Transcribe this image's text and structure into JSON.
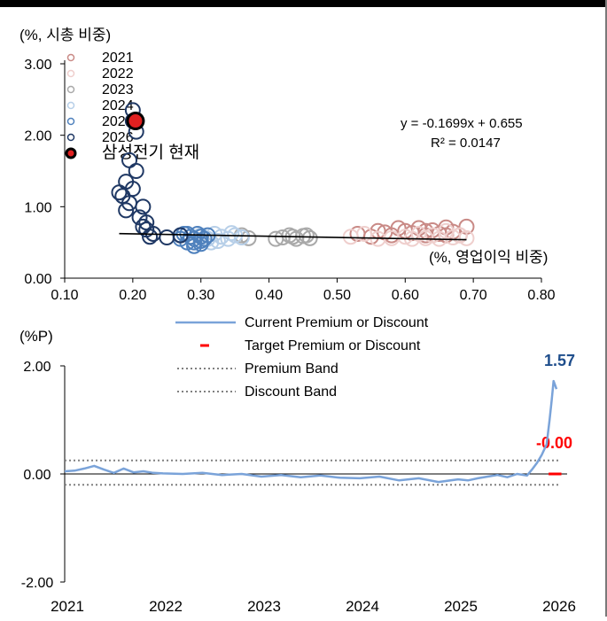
{
  "chart_data": [
    {
      "type": "scatter",
      "ylabel": "(%, 시총 비중)",
      "xlabel": "(%, 영업이익 비중)",
      "xlim": [
        0.1,
        0.8
      ],
      "ylim": [
        0.0,
        3.0
      ],
      "x_ticks": [
        "0.10",
        "0.20",
        "0.30",
        "0.40",
        "0.50",
        "0.60",
        "0.70",
        "0.80"
      ],
      "y_ticks": [
        "3.00",
        "2.00",
        "1.00",
        "0.00"
      ],
      "x_tick_values": [
        0.1,
        0.2,
        0.3,
        0.4,
        0.5,
        0.6,
        0.7,
        0.8
      ],
      "y_tick_values": [
        3.0,
        2.0,
        1.0,
        0.0
      ],
      "legend_position": "top-left",
      "equation": "y = -0.1699x + 0.655",
      "r2": "R² = 0.0147",
      "trendline": {
        "x": [
          0.18,
          0.69
        ],
        "y": [
          0.624,
          0.538
        ]
      },
      "series": [
        {
          "name": "2021",
          "color": "#c98a86",
          "points": [
            [
              0.53,
              0.62
            ],
            [
              0.55,
              0.58
            ],
            [
              0.57,
              0.64
            ],
            [
              0.58,
              0.6
            ],
            [
              0.6,
              0.66
            ],
            [
              0.61,
              0.63
            ],
            [
              0.62,
              0.7
            ],
            [
              0.63,
              0.6
            ],
            [
              0.64,
              0.67
            ],
            [
              0.65,
              0.62
            ],
            [
              0.66,
              0.71
            ],
            [
              0.67,
              0.65
            ],
            [
              0.68,
              0.6
            ],
            [
              0.69,
              0.72
            ],
            [
              0.56,
              0.66
            ],
            [
              0.59,
              0.7
            ],
            [
              0.63,
              0.66
            ],
            [
              0.66,
              0.6
            ]
          ]
        },
        {
          "name": "2022",
          "color": "#efcfcd",
          "points": [
            [
              0.52,
              0.58
            ],
            [
              0.54,
              0.62
            ],
            [
              0.56,
              0.55
            ],
            [
              0.58,
              0.56
            ],
            [
              0.6,
              0.58
            ],
            [
              0.61,
              0.55
            ],
            [
              0.63,
              0.56
            ],
            [
              0.64,
              0.6
            ],
            [
              0.65,
              0.55
            ],
            [
              0.67,
              0.57
            ],
            [
              0.68,
              0.6
            ],
            [
              0.69,
              0.56
            ],
            [
              0.62,
              0.62
            ],
            [
              0.66,
              0.66
            ]
          ]
        },
        {
          "name": "2023",
          "color": "#a9a9a9",
          "points": [
            [
              0.36,
              0.6
            ],
            [
              0.37,
              0.56
            ],
            [
              0.42,
              0.57
            ],
            [
              0.43,
              0.6
            ],
            [
              0.44,
              0.55
            ],
            [
              0.45,
              0.59
            ],
            [
              0.46,
              0.56
            ],
            [
              0.41,
              0.55
            ],
            [
              0.435,
              0.58
            ],
            [
              0.455,
              0.6
            ]
          ]
        },
        {
          "name": "2024",
          "color": "#b7cfe8",
          "points": [
            [
              0.3,
              0.6
            ],
            [
              0.31,
              0.55
            ],
            [
              0.32,
              0.62
            ],
            [
              0.33,
              0.58
            ],
            [
              0.34,
              0.55
            ],
            [
              0.35,
              0.6
            ],
            [
              0.36,
              0.57
            ],
            [
              0.325,
              0.52
            ],
            [
              0.345,
              0.63
            ],
            [
              0.315,
              0.5
            ]
          ]
        },
        {
          "name": "2025",
          "color": "#4f81bd",
          "points": [
            [
              0.27,
              0.6
            ],
            [
              0.28,
              0.62
            ],
            [
              0.29,
              0.55
            ],
            [
              0.29,
              0.5
            ],
            [
              0.3,
              0.58
            ],
            [
              0.3,
              0.52
            ],
            [
              0.31,
              0.6
            ],
            [
              0.28,
              0.5
            ],
            [
              0.27,
              0.55
            ],
            [
              0.295,
              0.62
            ],
            [
              0.285,
              0.58
            ],
            [
              0.305,
              0.55
            ],
            [
              0.275,
              0.62
            ],
            [
              0.29,
              0.45
            ],
            [
              0.3,
              0.48
            ]
          ]
        },
        {
          "name": "2026",
          "color": "#1f3864",
          "points": [
            [
              0.18,
              1.2
            ],
            [
              0.185,
              1.15
            ],
            [
              0.19,
              1.35
            ],
            [
              0.19,
              0.95
            ],
            [
              0.195,
              1.05
            ],
            [
              0.2,
              1.25
            ],
            [
              0.205,
              1.5
            ],
            [
              0.21,
              0.85
            ],
            [
              0.215,
              0.72
            ],
            [
              0.22,
              0.68
            ],
            [
              0.225,
              0.58
            ],
            [
              0.23,
              0.62
            ],
            [
              0.25,
              0.57
            ],
            [
              0.27,
              0.6
            ],
            [
              0.2,
              2.35
            ],
            [
              0.2,
              2.2
            ],
            [
              0.205,
              2.05
            ],
            [
              0.195,
              1.65
            ],
            [
              0.215,
              1.0
            ],
            [
              0.22,
              0.78
            ]
          ]
        },
        {
          "name": "삼성전기 현재",
          "color": "#000000",
          "fill": "#e02020",
          "points": [
            [
              0.204,
              2.2
            ]
          ]
        }
      ]
    },
    {
      "type": "line",
      "ylabel": "(%P)",
      "xlim": [
        2021.0,
        2026.0
      ],
      "ylim": [
        -2.0,
        2.0
      ],
      "x_ticks": [
        "2021",
        "2022",
        "2023",
        "2024",
        "2025",
        "2026"
      ],
      "y_ticks": [
        "2.00",
        "0.00",
        "-2.00"
      ],
      "x_tick_values": [
        2021,
        2022,
        2023,
        2024,
        2025,
        2026
      ],
      "y_tick_values": [
        2.0,
        0.0,
        -2.0
      ],
      "legend_position": "top-center",
      "end_label_current": "1.57",
      "end_label_target": "-0.00",
      "series": [
        {
          "name": "Current Premium or Discount",
          "color": "#7aa3d9",
          "x": [
            2021.0,
            2021.1,
            2021.2,
            2021.3,
            2021.4,
            2021.5,
            2021.6,
            2021.7,
            2021.8,
            2021.9,
            2022.0,
            2022.2,
            2022.4,
            2022.6,
            2022.8,
            2023.0,
            2023.2,
            2023.4,
            2023.6,
            2023.8,
            2024.0,
            2024.2,
            2024.4,
            2024.6,
            2024.8,
            2025.0,
            2025.1,
            2025.2,
            2025.3,
            2025.4,
            2025.5,
            2025.6,
            2025.7,
            2025.75,
            2025.8,
            2025.85,
            2025.9,
            2025.93,
            2025.95,
            2025.97,
            2026.0
          ],
          "y": [
            0.05,
            0.06,
            0.1,
            0.15,
            0.08,
            0.02,
            0.1,
            0.03,
            0.05,
            0.02,
            0.01,
            0.0,
            0.02,
            -0.02,
            0.0,
            -0.05,
            -0.02,
            -0.06,
            -0.03,
            -0.07,
            -0.08,
            -0.05,
            -0.12,
            -0.08,
            -0.15,
            -0.1,
            -0.12,
            -0.08,
            -0.05,
            -0.02,
            -0.06,
            0.0,
            -0.03,
            0.08,
            0.2,
            0.35,
            0.55,
            1.0,
            1.35,
            1.72,
            1.57
          ]
        },
        {
          "name": "Target Premium or Discount",
          "color": "#ff0000",
          "value": 0.0,
          "x_range": [
            2025.92,
            2026.05
          ]
        },
        {
          "name": "Premium Band",
          "color": "#808080",
          "value": 0.25
        },
        {
          "name": "Discount Band",
          "color": "#808080",
          "value": -0.2
        }
      ]
    }
  ]
}
